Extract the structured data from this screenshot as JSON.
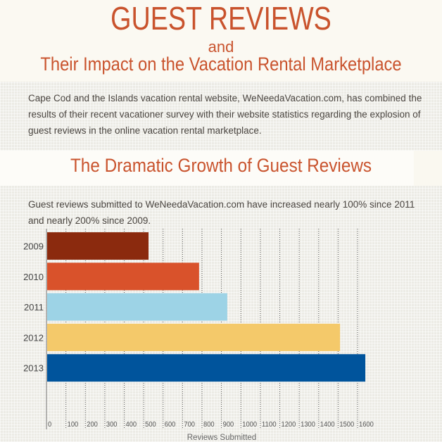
{
  "header": {
    "title": "GUEST REVIEWS",
    "and": "and",
    "subtitle": "Their Impact on the Vacation Rental Marketplace"
  },
  "intro": "Cape Cod and the Islands vacation rental website, WeNeedaVacation.com, has combined the results of their recent vacationer survey with their website statistics regarding the explosion of guest reviews in the online vacation rental marketplace.",
  "section": {
    "title": "The Dramatic Growth of Guest Reviews",
    "description": "Guest reviews submitted to WeNeedaVacation.com have increased nearly 100% since 2011 and nearly 200% since 2009."
  },
  "colors": {
    "accent": "#c9532d",
    "text": "#4a4540"
  },
  "chart_data": {
    "type": "bar",
    "orientation": "horizontal",
    "categories": [
      "2009",
      "2010",
      "2011",
      "2012",
      "2013"
    ],
    "values": [
      525,
      785,
      930,
      1510,
      1640
    ],
    "bar_colors": [
      "#8b2a0e",
      "#d9522b",
      "#9dd3e6",
      "#f4c96a",
      "#00549c"
    ],
    "xlabel": "Reviews Submitted",
    "ylabel": "",
    "xlim": [
      0,
      1600
    ],
    "xticks": [
      "0",
      "100",
      "200",
      "300",
      "400",
      "500",
      "600",
      "700",
      "800",
      "900",
      "1000",
      "1100",
      "1200",
      "1300",
      "1400",
      "1500",
      "1600"
    ],
    "grid": "vertical dotted"
  }
}
